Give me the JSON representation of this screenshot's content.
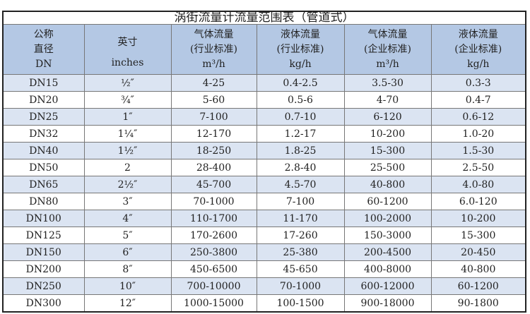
{
  "title": "涡街流量计流量范围表（管道式）",
  "headers": [
    {
      "l1": "公称",
      "l2": "直径",
      "l3": "DN"
    },
    {
      "l1": "英寸",
      "l2": "",
      "l3": "inches"
    },
    {
      "l1": "气体流量",
      "l2": "(行业标准)",
      "l3": "m³/h"
    },
    {
      "l1": "液体流量",
      "l2": "(行业标准)",
      "l3": "kg/h"
    },
    {
      "l1": "气体流量",
      "l2": "(企业标准)",
      "l3": "m³/h"
    },
    {
      "l1": "液体流量",
      "l2": "(企业标准)",
      "l3": "kg/h"
    }
  ],
  "rows": [
    [
      "DN15",
      "½″",
      "4-25",
      "0.4-2.5",
      "3.5-30",
      "0.3-3"
    ],
    [
      "DN20",
      "¾″",
      "5-60",
      "0.5-6",
      "4-70",
      "0.4-7"
    ],
    [
      "DN25",
      "1″",
      "7-100",
      "0.7-10",
      "6-120",
      "0.6-12"
    ],
    [
      "DN32",
      "1¼″",
      "12-170",
      "1.2-17",
      "10-200",
      "1.0-20"
    ],
    [
      "DN40",
      "1½″",
      "18-250",
      "1.8-25",
      "15-300",
      "1.5-30"
    ],
    [
      "DN50",
      "2",
      "28-400",
      "2.8-40",
      "25-500",
      "2.5-50"
    ],
    [
      "DN65",
      "2½″",
      "45-700",
      "4.5-70",
      "40-800",
      "4.0-80"
    ],
    [
      "DN80",
      "3″",
      "70-1000",
      "7-100",
      "60-1200",
      "6.0-120"
    ],
    [
      "DN100",
      "4″",
      "110-1700",
      "11-170",
      "100-2000",
      "10-200"
    ],
    [
      "DN125",
      "5″",
      "170-2600",
      "17-260",
      "150-3000",
      "15-300"
    ],
    [
      "DN150",
      "6″",
      "250-3800",
      "25-380",
      "200-4500",
      "20-450"
    ],
    [
      "DN200",
      "8″",
      "450-6500",
      "45-650",
      "400-8000",
      "40-800"
    ],
    [
      "DN250",
      "10″",
      "700-10000",
      "70-1000",
      "600-12000",
      "60-1200"
    ],
    [
      "DN300",
      "12″",
      "1000-15000",
      "100-1500",
      "900-18000",
      "90-1800"
    ]
  ]
}
